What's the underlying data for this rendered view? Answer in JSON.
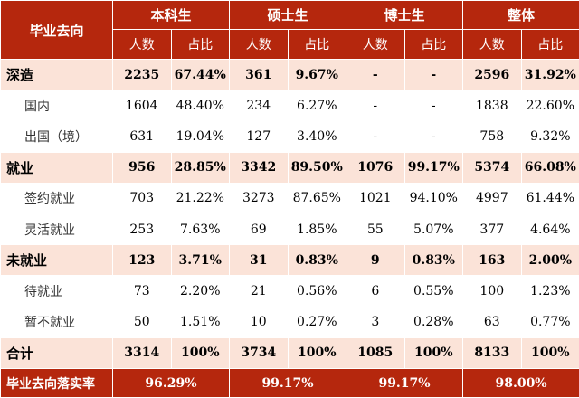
{
  "table": {
    "corner_label": "毕业去向",
    "groups": [
      "本科生",
      "硕士生",
      "博士生",
      "整体"
    ],
    "subheaders": [
      "人数",
      "占比"
    ],
    "rows": [
      {
        "kind": "cat",
        "label": "深造",
        "values": [
          "2235",
          "67.44%",
          "361",
          "9.67%",
          "-",
          "-",
          "2596",
          "31.92%"
        ]
      },
      {
        "kind": "sub",
        "label": "国内",
        "values": [
          "1604",
          "48.40%",
          "234",
          "6.27%",
          "-",
          "-",
          "1838",
          "22.60%"
        ]
      },
      {
        "kind": "sub",
        "label": "出国（境）",
        "values": [
          "631",
          "19.04%",
          "127",
          "3.40%",
          "-",
          "-",
          "758",
          "9.32%"
        ]
      },
      {
        "kind": "cat",
        "label": "就业",
        "values": [
          "956",
          "28.85%",
          "3342",
          "89.50%",
          "1076",
          "99.17%",
          "5374",
          "66.08%"
        ]
      },
      {
        "kind": "sub",
        "label": "签约就业",
        "values": [
          "703",
          "21.22%",
          "3273",
          "87.65%",
          "1021",
          "94.10%",
          "4997",
          "61.44%"
        ]
      },
      {
        "kind": "sub",
        "label": "灵活就业",
        "values": [
          "253",
          "7.63%",
          "69",
          "1.85%",
          "55",
          "5.07%",
          "377",
          "4.64%"
        ]
      },
      {
        "kind": "cat",
        "label": "未就业",
        "values": [
          "123",
          "3.71%",
          "31",
          "0.83%",
          "9",
          "0.83%",
          "163",
          "2.00%"
        ]
      },
      {
        "kind": "sub",
        "label": "待就业",
        "values": [
          "73",
          "2.20%",
          "21",
          "0.56%",
          "6",
          "0.55%",
          "100",
          "1.23%"
        ]
      },
      {
        "kind": "sub",
        "label": "暂不就业",
        "values": [
          "50",
          "1.51%",
          "10",
          "0.27%",
          "3",
          "0.28%",
          "63",
          "0.77%"
        ]
      },
      {
        "kind": "tot",
        "label": "合计",
        "values": [
          "3314",
          "100%",
          "3734",
          "100%",
          "1085",
          "100%",
          "8133",
          "100%"
        ]
      }
    ],
    "footer": {
      "label": "毕业去向落实率",
      "values": [
        "96.29%",
        "99.17%",
        "99.17%",
        "98.00%"
      ]
    },
    "colors": {
      "header_bg": "#b5270d",
      "category_row_bg": "#fbe3d8",
      "sub_row_bg": "#ffffff"
    }
  }
}
